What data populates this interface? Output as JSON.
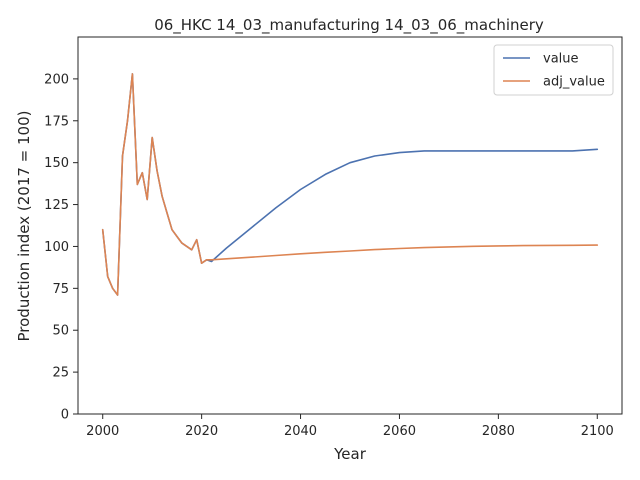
{
  "chart_data": {
    "type": "line",
    "title": "06_HKC 14_03_manufacturing 14_03_06_machinery",
    "xlabel": "Year",
    "ylabel": "Production index (2017 = 100)",
    "xlim": [
      1995,
      2105
    ],
    "ylim": [
      0,
      225
    ],
    "xticks": [
      2000,
      2020,
      2040,
      2060,
      2080,
      2100
    ],
    "yticks": [
      0,
      25,
      50,
      75,
      100,
      125,
      150,
      175,
      200
    ],
    "grid": false,
    "legend_position": "top-right",
    "series": [
      {
        "name": "value",
        "color": "#4c72b0",
        "x": [
          2000,
          2001,
          2002,
          2003,
          2004,
          2005,
          2006,
          2007,
          2008,
          2009,
          2010,
          2011,
          2012,
          2013,
          2014,
          2015,
          2016,
          2017,
          2018,
          2019,
          2020,
          2021,
          2022,
          2025,
          2030,
          2035,
          2040,
          2045,
          2050,
          2055,
          2060,
          2065,
          2070,
          2075,
          2080,
          2085,
          2090,
          2095,
          2100
        ],
        "y": [
          110,
          82,
          75,
          71,
          154,
          175,
          203,
          137,
          144,
          128,
          165,
          145,
          130,
          120,
          110,
          106,
          102,
          100,
          98,
          104,
          90,
          92,
          91,
          99,
          111,
          123,
          134,
          143,
          150,
          154,
          156,
          157,
          157,
          157,
          157,
          157,
          157,
          157,
          158
        ]
      },
      {
        "name": "adj_value",
        "color": "#dd8452",
        "x": [
          2000,
          2001,
          2002,
          2003,
          2004,
          2005,
          2006,
          2007,
          2008,
          2009,
          2010,
          2011,
          2012,
          2013,
          2014,
          2015,
          2016,
          2017,
          2018,
          2019,
          2020,
          2021,
          2022,
          2025,
          2030,
          2035,
          2040,
          2045,
          2050,
          2055,
          2060,
          2065,
          2070,
          2075,
          2080,
          2085,
          2090,
          2095,
          2100
        ],
        "y": [
          110,
          82,
          75,
          71,
          154,
          175,
          203,
          137,
          144,
          128,
          165,
          145,
          130,
          120,
          110,
          106,
          102,
          100,
          98,
          104,
          90,
          92,
          92,
          92.6,
          93.6,
          94.6,
          95.6,
          96.5,
          97.3,
          98.1,
          98.8,
          99.3,
          99.7,
          100.1,
          100.3,
          100.5,
          100.6,
          100.7,
          100.8
        ]
      }
    ]
  }
}
